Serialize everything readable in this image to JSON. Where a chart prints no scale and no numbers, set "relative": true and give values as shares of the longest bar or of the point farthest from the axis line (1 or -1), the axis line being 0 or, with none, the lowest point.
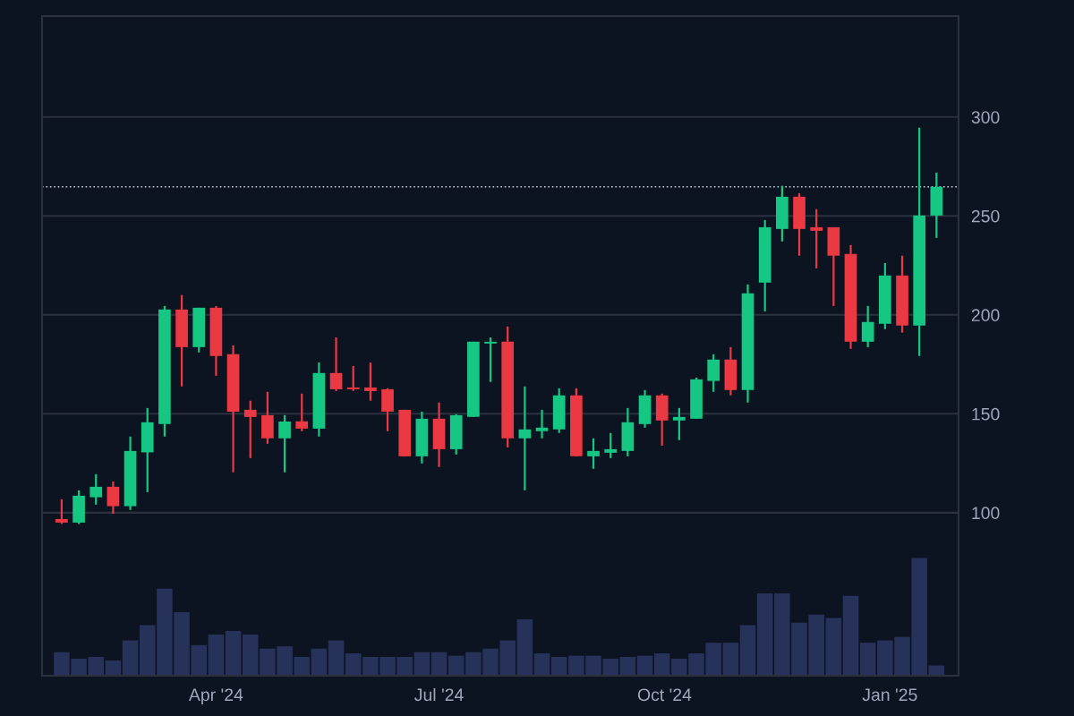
{
  "chart_data": [
    {
      "type": "candlestick",
      "x": [
        "2024-01-29",
        "2024-02-05",
        "2024-02-12",
        "2024-02-19",
        "2024-02-26",
        "2024-03-04",
        "2024-03-11",
        "2024-03-18",
        "2024-03-25",
        "2024-04-01",
        "2024-04-08",
        "2024-04-15",
        "2024-04-22",
        "2024-04-29",
        "2024-05-06",
        "2024-05-13",
        "2024-05-20",
        "2024-05-27",
        "2024-06-03",
        "2024-06-10",
        "2024-06-17",
        "2024-06-24",
        "2024-07-01",
        "2024-07-08",
        "2024-07-15",
        "2024-07-22",
        "2024-07-29",
        "2024-08-05",
        "2024-08-12",
        "2024-08-19",
        "2024-08-26",
        "2024-09-02",
        "2024-09-09",
        "2024-09-16",
        "2024-09-23",
        "2024-09-30",
        "2024-10-07",
        "2024-10-14",
        "2024-10-21",
        "2024-10-28",
        "2024-11-04",
        "2024-11-11",
        "2024-11-18",
        "2024-11-25",
        "2024-12-02",
        "2024-12-09",
        "2024-12-16",
        "2024-12-23",
        "2024-12-30",
        "2025-01-06",
        "2025-01-13",
        "2025-01-20"
      ],
      "ohlc": [
        [
          96.8,
          106.8,
          94.3,
          95.0
        ],
        [
          95.0,
          111.3,
          94.3,
          108.6
        ],
        [
          107.8,
          119.5,
          104.1,
          113.1
        ],
        [
          113.1,
          115.8,
          99.5,
          103.3
        ],
        [
          103.3,
          138.5,
          101.4,
          131.2
        ],
        [
          130.5,
          152.9,
          110.4,
          145.7
        ],
        [
          144.8,
          204.5,
          138.5,
          202.7
        ],
        [
          202.7,
          210.0,
          163.8,
          183.7
        ],
        [
          183.7,
          203.6,
          181.0,
          203.6
        ],
        [
          203.6,
          204.5,
          169.2,
          179.2
        ],
        [
          180.1,
          184.6,
          120.4,
          151.1
        ],
        [
          152.0,
          156.6,
          127.6,
          148.4
        ],
        [
          149.3,
          161.1,
          134.8,
          137.6
        ],
        [
          137.6,
          149.3,
          120.4,
          146.1
        ],
        [
          146.2,
          160.2,
          141.2,
          142.5
        ],
        [
          142.5,
          175.9,
          138.5,
          170.6
        ],
        [
          170.6,
          188.6,
          161.5,
          162.4
        ],
        [
          163.3,
          174.2,
          161.5,
          162.4
        ],
        [
          163.3,
          175.9,
          156.6,
          161.5
        ],
        [
          162.4,
          162.9,
          141.2,
          151.1
        ],
        [
          152.0,
          152.0,
          128.5,
          128.5
        ],
        [
          128.5,
          151.1,
          124.9,
          147.5
        ],
        [
          147.5,
          155.7,
          123.1,
          132.1
        ],
        [
          132.1,
          149.8,
          129.4,
          149.3
        ],
        [
          148.4,
          186.4,
          148.4,
          186.4
        ],
        [
          185.5,
          188.6,
          166.1,
          186.4
        ],
        [
          186.4,
          194.1,
          133.0,
          137.6
        ],
        [
          137.6,
          163.8,
          111.3,
          142.1
        ],
        [
          141.2,
          152.0,
          137.6,
          143.0
        ],
        [
          142.1,
          162.9,
          140.3,
          159.3
        ],
        [
          159.3,
          162.9,
          128.5,
          128.5
        ],
        [
          128.5,
          137.6,
          122.2,
          131.2
        ],
        [
          130.3,
          140.3,
          127.6,
          132.1
        ],
        [
          131.2,
          152.9,
          128.5,
          145.7
        ],
        [
          144.8,
          162.0,
          143.0,
          159.3
        ],
        [
          159.3,
          160.2,
          133.9,
          146.6
        ],
        [
          146.6,
          152.9,
          136.7,
          148.4
        ],
        [
          147.5,
          168.3,
          147.5,
          167.4
        ],
        [
          166.6,
          180.1,
          161.1,
          177.4
        ],
        [
          177.4,
          183.7,
          159.3,
          162.0
        ],
        [
          162.0,
          215.4,
          155.7,
          210.9
        ],
        [
          216.3,
          247.9,
          201.8,
          244.3
        ],
        [
          243.4,
          265.2,
          237.1,
          259.7
        ],
        [
          259.7,
          261.5,
          229.9,
          243.4
        ],
        [
          244.3,
          253.4,
          223.5,
          242.5
        ],
        [
          244.3,
          244.3,
          204.5,
          229.9
        ],
        [
          230.8,
          235.3,
          182.8,
          186.4
        ],
        [
          186.4,
          204.5,
          183.7,
          196.4
        ],
        [
          195.5,
          226.2,
          192.8,
          219.9
        ],
        [
          219.9,
          229.9,
          191.0,
          194.6
        ],
        [
          194.6,
          294.6,
          179.2,
          250.2
        ],
        [
          250.2,
          271.9,
          238.9,
          264.7
        ]
      ],
      "colors": [
        "#ea3943",
        "#16c784",
        "#16c784",
        "#ea3943",
        "#16c784",
        "#16c784",
        "#16c784",
        "#ea3943",
        "#16c784",
        "#ea3943",
        "#ea3943",
        "#ea3943",
        "#ea3943",
        "#16c784",
        "#ea3943",
        "#16c784",
        "#ea3943",
        "#ea3943",
        "#ea3943",
        "#ea3943",
        "#ea3943",
        "#16c784",
        "#ea3943",
        "#16c784",
        "#16c784",
        "#16c784",
        "#ea3943",
        "#16c784",
        "#16c784",
        "#16c784",
        "#ea3943",
        "#16c784",
        "#16c784",
        "#16c784",
        "#16c784",
        "#ea3943",
        "#16c784",
        "#16c784",
        "#16c784",
        "#ea3943",
        "#16c784",
        "#16c784",
        "#16c784",
        "#ea3943",
        "#ea3943",
        "#ea3943",
        "#ea3943",
        "#16c784",
        "#16c784",
        "#ea3943",
        "#16c784",
        "#16c784"
      ],
      "xlim": [
        "2024-01-21",
        "2025-01-29"
      ],
      "xticks": [
        {
          "value": "2024-04-01",
          "label": "Apr '24"
        },
        {
          "value": "2024-07-01",
          "label": "Jul '24"
        },
        {
          "value": "2024-10-01",
          "label": "Oct '24"
        },
        {
          "value": "2025-01-01",
          "label": "Jan '25"
        }
      ],
      "ylim": [
        17.6,
        351
      ],
      "yticks": [
        100,
        150,
        200,
        250,
        300
      ],
      "grid": "y",
      "ref_lines": [
        {
          "axis": "y",
          "value": 264.7,
          "color": "#c7ccd6",
          "line_style": "dotted"
        }
      ]
    },
    {
      "type": "bar",
      "x": [
        "2024-01-29",
        "2024-02-05",
        "2024-02-12",
        "2024-02-19",
        "2024-02-26",
        "2024-03-04",
        "2024-03-11",
        "2024-03-18",
        "2024-03-25",
        "2024-04-01",
        "2024-04-08",
        "2024-04-15",
        "2024-04-22",
        "2024-04-29",
        "2024-05-06",
        "2024-05-13",
        "2024-05-20",
        "2024-05-27",
        "2024-06-03",
        "2024-06-10",
        "2024-06-17",
        "2024-06-24",
        "2024-07-01",
        "2024-07-08",
        "2024-07-15",
        "2024-07-22",
        "2024-07-29",
        "2024-08-05",
        "2024-08-12",
        "2024-08-19",
        "2024-08-26",
        "2024-09-02",
        "2024-09-09",
        "2024-09-16",
        "2024-09-23",
        "2024-09-30",
        "2024-10-07",
        "2024-10-14",
        "2024-10-21",
        "2024-10-28",
        "2024-11-04",
        "2024-11-11",
        "2024-11-18",
        "2024-11-25",
        "2024-12-02",
        "2024-12-09",
        "2024-12-16",
        "2024-12-23",
        "2024-12-30",
        "2025-01-06",
        "2025-01-13",
        "2025-01-20"
      ],
      "values": [
        0.2,
        0.145,
        0.16,
        0.13,
        0.3,
        0.43,
        0.74,
        0.54,
        0.26,
        0.35,
        0.38,
        0.35,
        0.23,
        0.25,
        0.16,
        0.23,
        0.3,
        0.19,
        0.16,
        0.16,
        0.16,
        0.2,
        0.2,
        0.17,
        0.2,
        0.23,
        0.3,
        0.48,
        0.19,
        0.16,
        0.17,
        0.17,
        0.145,
        0.16,
        0.17,
        0.19,
        0.145,
        0.19,
        0.28,
        0.28,
        0.43,
        0.7,
        0.7,
        0.45,
        0.52,
        0.49,
        0.68,
        0.28,
        0.3,
        0.33,
        1.0,
        0.087
      ],
      "color": "#27325a",
      "relative": true,
      "xlim": [
        "2024-01-21",
        "2025-01-29"
      ]
    }
  ]
}
